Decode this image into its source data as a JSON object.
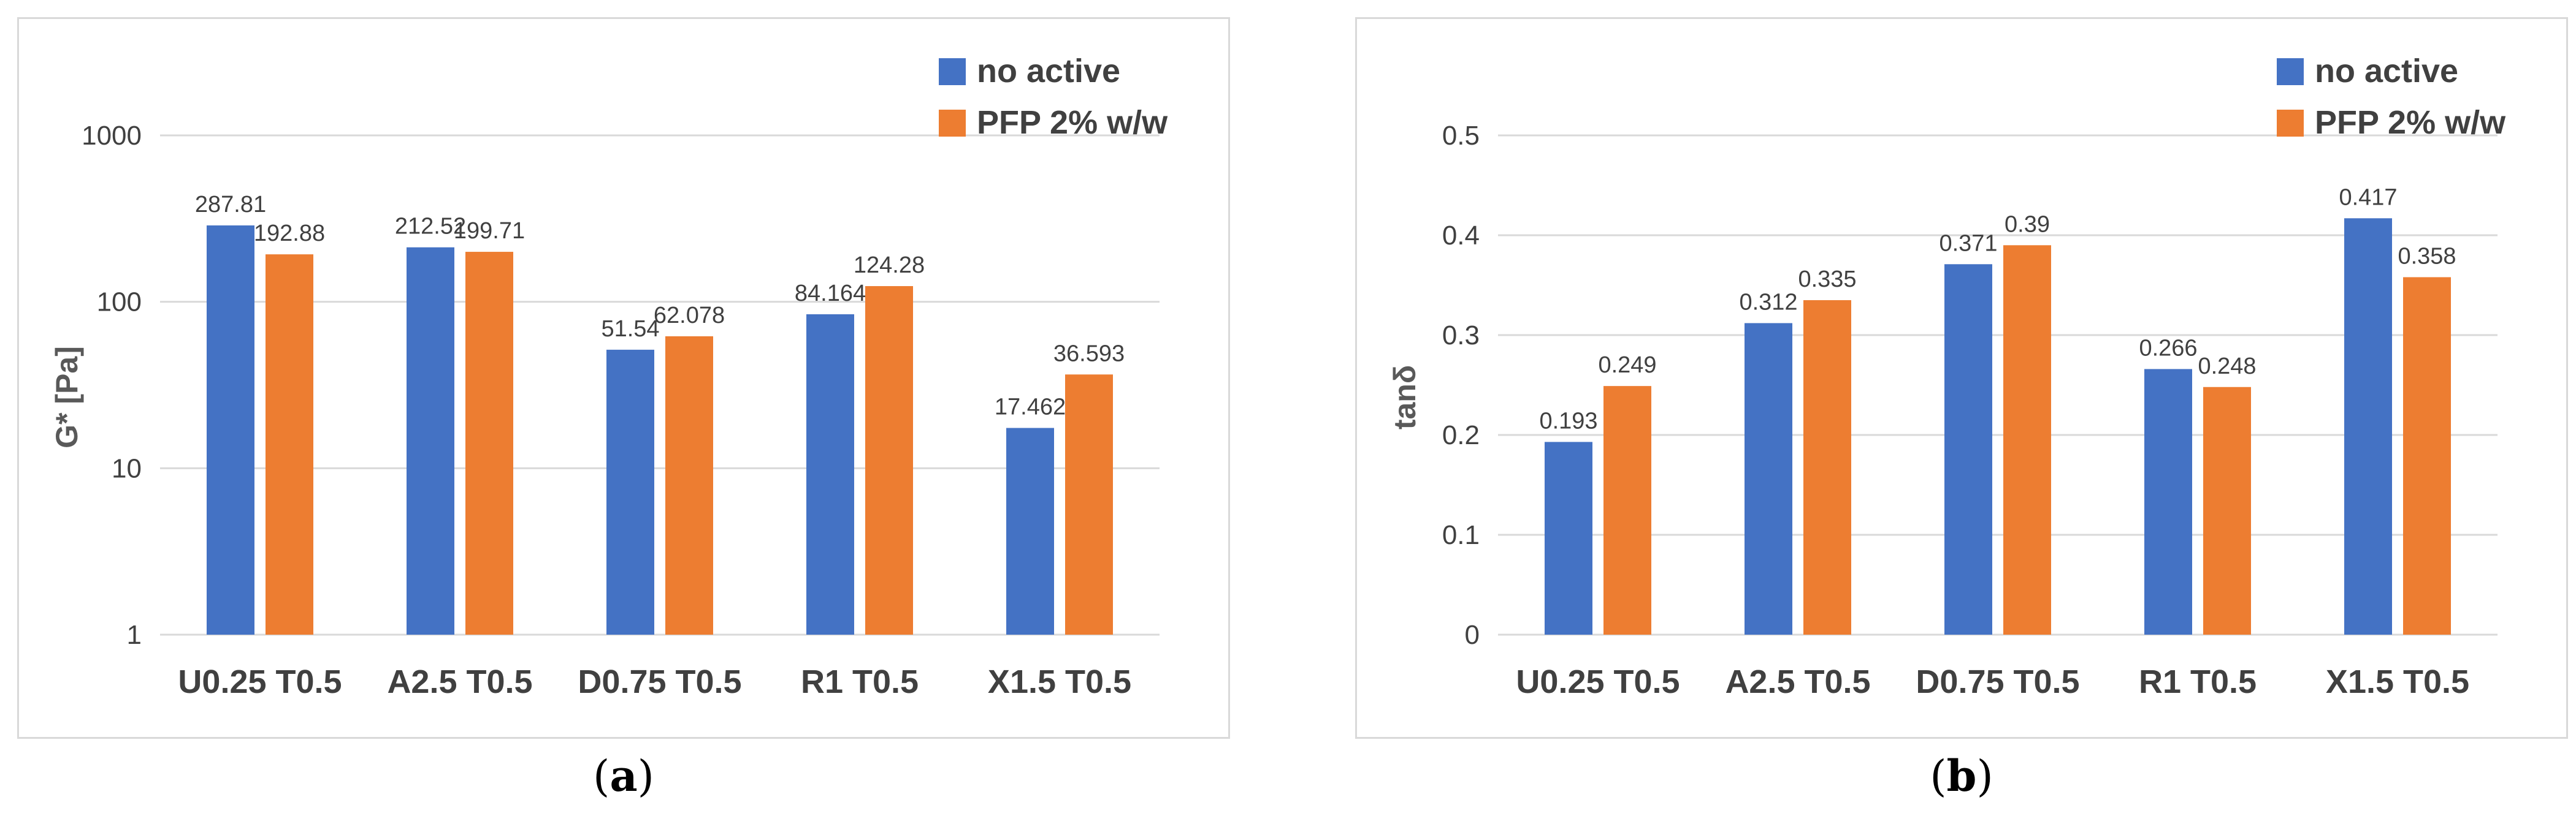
{
  "colors": {
    "series1": "#4472C4",
    "series2": "#ED7D31",
    "grid": "#d9d9d9",
    "text": "#404040",
    "axis_title": "#595959"
  },
  "captions": {
    "a_open": "(",
    "a_letter": "a",
    "a_close": ")",
    "b_open": "(",
    "b_letter": "b",
    "b_close": ")"
  },
  "chart_data": [
    {
      "id": "a",
      "type": "bar",
      "scale": "log",
      "title": "",
      "xlabel": "",
      "ylabel": "G* [Pa]",
      "ylim": [
        1,
        1000
      ],
      "yticks": [
        "1",
        "10",
        "100",
        "1000"
      ],
      "ytick_values": [
        1,
        10,
        100,
        1000
      ],
      "categories": [
        "U0.25 T0.5",
        "A2.5 T0.5",
        "D0.75 T0.5",
        "R1 T0.5",
        "X1.5 T0.5"
      ],
      "series": [
        {
          "name": "no active",
          "values": [
            287.81,
            212.52,
            51.54,
            84.164,
            17.462
          ],
          "labels": [
            "287.81",
            "212.52",
            "51.54",
            "84.164",
            "17.462"
          ]
        },
        {
          "name": "PFP 2% w/w",
          "values": [
            192.88,
            199.71,
            62.078,
            124.28,
            36.593
          ],
          "labels": [
            "192.88",
            "199.71",
            "62.078",
            "124.28",
            "36.593"
          ]
        }
      ],
      "legend_position": "top-right",
      "grid": true
    },
    {
      "id": "b",
      "type": "bar",
      "scale": "linear",
      "title": "",
      "xlabel": "",
      "ylabel": "tanδ",
      "ylim": [
        0,
        0.5
      ],
      "yticks": [
        "0",
        "0.1",
        "0.2",
        "0.3",
        "0.4",
        "0.5"
      ],
      "ytick_values": [
        0,
        0.1,
        0.2,
        0.3,
        0.4,
        0.5
      ],
      "categories": [
        "U0.25 T0.5",
        "A2.5 T0.5",
        "D0.75 T0.5",
        "R1 T0.5",
        "X1.5 T0.5"
      ],
      "series": [
        {
          "name": "no active",
          "values": [
            0.193,
            0.312,
            0.371,
            0.266,
            0.417
          ],
          "labels": [
            "0.193",
            "0.312",
            "0.371",
            "0.266",
            "0.417"
          ]
        },
        {
          "name": "PFP 2% w/w",
          "values": [
            0.249,
            0.335,
            0.39,
            0.248,
            0.358
          ],
          "labels": [
            "0.249",
            "0.335",
            "0.39",
            "0.248",
            "0.358"
          ]
        }
      ],
      "legend_position": "top-right",
      "grid": true
    }
  ]
}
